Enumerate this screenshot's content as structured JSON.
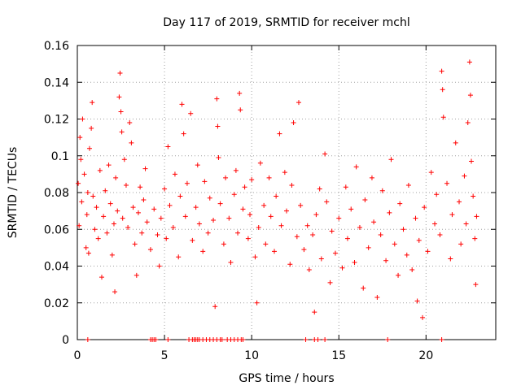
{
  "chart_data": {
    "type": "scatter",
    "title": "Day 117 of 2019, SRMTID for receiver mchl",
    "xlabel": "GPS time / hours",
    "ylabel": "SRMTID / TECUs",
    "xlim": [
      0,
      24
    ],
    "ylim": [
      0,
      0.16
    ],
    "x_ticks": [
      0,
      5,
      10,
      15,
      20
    ],
    "x_tick_labels": [
      "0",
      "5",
      "10",
      "15",
      "20"
    ],
    "y_ticks": [
      0,
      0.02,
      0.04,
      0.06,
      0.08,
      0.1,
      0.12,
      0.14,
      0.16
    ],
    "y_tick_labels": [
      "0",
      "0.02",
      "0.04",
      "0.06",
      "0.08",
      "0.1",
      "0.12",
      "0.14",
      "0.16"
    ],
    "grid": true,
    "marker": "plus",
    "color": "#ff0000",
    "series": [
      {
        "name": "SRMTID",
        "points": [
          [
            0.05,
            0.085
          ],
          [
            0.1,
            0.062
          ],
          [
            0.15,
            0.11
          ],
          [
            0.2,
            0.098
          ],
          [
            0.25,
            0.075
          ],
          [
            0.3,
            0.12
          ],
          [
            0.4,
            0.09
          ],
          [
            0.5,
            0.05
          ],
          [
            0.55,
            0.068
          ],
          [
            0.6,
            0.08
          ],
          [
            0.65,
            0.047
          ],
          [
            0.7,
            0.104
          ],
          [
            0.8,
            0.115
          ],
          [
            0.85,
            0.129
          ],
          [
            0.9,
            0.078
          ],
          [
            1.0,
            0.06
          ],
          [
            1.1,
            0.072
          ],
          [
            1.2,
            0.055
          ],
          [
            1.3,
            0.092
          ],
          [
            1.4,
            0.034
          ],
          [
            1.5,
            0.067
          ],
          [
            1.6,
            0.081
          ],
          [
            1.7,
            0.058
          ],
          [
            1.8,
            0.095
          ],
          [
            1.9,
            0.074
          ],
          [
            2.0,
            0.046
          ],
          [
            2.1,
            0.063
          ],
          [
            2.15,
            0.026
          ],
          [
            2.2,
            0.088
          ],
          [
            2.3,
            0.07
          ],
          [
            2.4,
            0.132
          ],
          [
            2.45,
            0.145
          ],
          [
            2.5,
            0.124
          ],
          [
            2.55,
            0.113
          ],
          [
            2.6,
            0.066
          ],
          [
            2.7,
            0.098
          ],
          [
            2.8,
            0.084
          ],
          [
            2.9,
            0.061
          ],
          [
            3.0,
            0.118
          ],
          [
            3.1,
            0.107
          ],
          [
            3.2,
            0.072
          ],
          [
            3.3,
            0.052
          ],
          [
            3.4,
            0.035
          ],
          [
            3.5,
            0.069
          ],
          [
            3.6,
            0.083
          ],
          [
            3.7,
            0.058
          ],
          [
            3.8,
            0.076
          ],
          [
            3.9,
            0.093
          ],
          [
            4.0,
            0.064
          ],
          [
            4.2,
            0.049
          ],
          [
            4.4,
            0.071
          ],
          [
            4.6,
            0.057
          ],
          [
            4.7,
            0.04
          ],
          [
            4.8,
            0.066
          ],
          [
            5.0,
            0.082
          ],
          [
            5.1,
            0.055
          ],
          [
            5.2,
            0.105
          ],
          [
            5.3,
            0.073
          ],
          [
            5.5,
            0.061
          ],
          [
            5.6,
            0.09
          ],
          [
            5.8,
            0.045
          ],
          [
            5.9,
            0.078
          ],
          [
            6.0,
            0.128
          ],
          [
            6.1,
            0.112
          ],
          [
            6.2,
            0.067
          ],
          [
            6.3,
            0.085
          ],
          [
            6.5,
            0.123
          ],
          [
            6.6,
            0.054
          ],
          [
            6.8,
            0.072
          ],
          [
            6.9,
            0.095
          ],
          [
            7.0,
            0.063
          ],
          [
            7.2,
            0.048
          ],
          [
            7.3,
            0.086
          ],
          [
            7.5,
            0.058
          ],
          [
            7.6,
            0.077
          ],
          [
            7.8,
            0.065
          ],
          [
            7.9,
            0.018
          ],
          [
            8.0,
            0.131
          ],
          [
            8.05,
            0.116
          ],
          [
            8.1,
            0.099
          ],
          [
            8.2,
            0.074
          ],
          [
            8.4,
            0.052
          ],
          [
            8.5,
            0.088
          ],
          [
            8.7,
            0.066
          ],
          [
            8.8,
            0.042
          ],
          [
            9.0,
            0.079
          ],
          [
            9.1,
            0.092
          ],
          [
            9.2,
            0.058
          ],
          [
            9.3,
            0.134
          ],
          [
            9.35,
            0.125
          ],
          [
            9.5,
            0.071
          ],
          [
            9.6,
            0.083
          ],
          [
            9.8,
            0.055
          ],
          [
            9.9,
            0.068
          ],
          [
            10.0,
            0.087
          ],
          [
            10.2,
            0.045
          ],
          [
            10.3,
            0.02
          ],
          [
            10.4,
            0.061
          ],
          [
            10.5,
            0.096
          ],
          [
            10.7,
            0.073
          ],
          [
            10.8,
            0.052
          ],
          [
            11.0,
            0.088
          ],
          [
            11.1,
            0.067
          ],
          [
            11.3,
            0.048
          ],
          [
            11.4,
            0.078
          ],
          [
            11.6,
            0.112
          ],
          [
            11.7,
            0.062
          ],
          [
            11.9,
            0.091
          ],
          [
            12.0,
            0.07
          ],
          [
            12.2,
            0.041
          ],
          [
            12.3,
            0.084
          ],
          [
            12.4,
            0.118
          ],
          [
            12.6,
            0.056
          ],
          [
            12.7,
            0.129
          ],
          [
            12.8,
            0.073
          ],
          [
            13.0,
            0.049
          ],
          [
            13.2,
            0.062
          ],
          [
            13.3,
            0.038
          ],
          [
            13.5,
            0.057
          ],
          [
            13.6,
            0.015
          ],
          [
            13.7,
            0.068
          ],
          [
            13.9,
            0.082
          ],
          [
            14.0,
            0.044
          ],
          [
            14.2,
            0.101
          ],
          [
            14.3,
            0.075
          ],
          [
            14.5,
            0.031
          ],
          [
            14.6,
            0.059
          ],
          [
            14.8,
            0.047
          ],
          [
            15.0,
            0.066
          ],
          [
            15.2,
            0.039
          ],
          [
            15.4,
            0.083
          ],
          [
            15.5,
            0.055
          ],
          [
            15.7,
            0.071
          ],
          [
            15.9,
            0.042
          ],
          [
            16.0,
            0.094
          ],
          [
            16.2,
            0.061
          ],
          [
            16.4,
            0.028
          ],
          [
            16.5,
            0.076
          ],
          [
            16.7,
            0.05
          ],
          [
            16.9,
            0.088
          ],
          [
            17.0,
            0.064
          ],
          [
            17.2,
            0.023
          ],
          [
            17.4,
            0.057
          ],
          [
            17.5,
            0.081
          ],
          [
            17.7,
            0.043
          ],
          [
            17.9,
            0.069
          ],
          [
            18.0,
            0.098
          ],
          [
            18.2,
            0.052
          ],
          [
            18.4,
            0.035
          ],
          [
            18.5,
            0.074
          ],
          [
            18.7,
            0.06
          ],
          [
            18.9,
            0.046
          ],
          [
            19.0,
            0.084
          ],
          [
            19.2,
            0.038
          ],
          [
            19.4,
            0.066
          ],
          [
            19.5,
            0.021
          ],
          [
            19.6,
            0.054
          ],
          [
            19.8,
            0.012
          ],
          [
            19.9,
            0.072
          ],
          [
            20.1,
            0.048
          ],
          [
            20.3,
            0.091
          ],
          [
            20.5,
            0.063
          ],
          [
            20.6,
            0.079
          ],
          [
            20.8,
            0.057
          ],
          [
            20.9,
            0.146
          ],
          [
            20.95,
            0.136
          ],
          [
            21.0,
            0.121
          ],
          [
            21.2,
            0.085
          ],
          [
            21.4,
            0.044
          ],
          [
            21.5,
            0.068
          ],
          [
            21.7,
            0.107
          ],
          [
            21.9,
            0.075
          ],
          [
            22.0,
            0.052
          ],
          [
            22.2,
            0.089
          ],
          [
            22.3,
            0.063
          ],
          [
            22.4,
            0.118
          ],
          [
            22.5,
            0.151
          ],
          [
            22.55,
            0.133
          ],
          [
            22.6,
            0.097
          ],
          [
            22.7,
            0.078
          ],
          [
            22.8,
            0.055
          ],
          [
            22.85,
            0.03
          ],
          [
            22.9,
            0.067
          ]
        ],
        "zero_points": [
          0.6,
          4.2,
          4.3,
          4.4,
          4.5,
          5.2,
          6.4,
          6.6,
          6.7,
          6.8,
          6.9,
          7.0,
          7.2,
          7.4,
          7.6,
          7.8,
          8.0,
          8.2,
          8.3,
          8.6,
          8.8,
          9.0,
          9.2,
          9.4,
          9.5,
          13.1,
          13.6,
          13.8,
          14.2,
          17.8,
          20.9
        ]
      }
    ]
  }
}
